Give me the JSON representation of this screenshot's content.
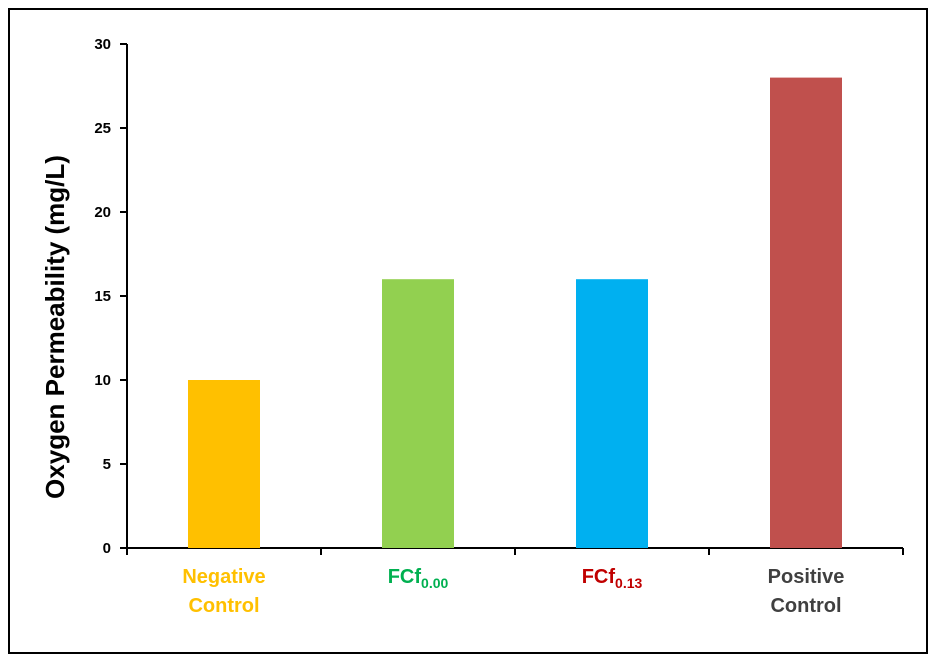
{
  "chart_data": {
    "type": "bar",
    "title": "",
    "xlabel": "",
    "ylabel": "Oxygen Permeability (mg/L)",
    "ylim": [
      0,
      30
    ],
    "yticks": [
      0,
      5,
      10,
      15,
      20,
      25,
      30
    ],
    "grid": false,
    "legend": "none",
    "categories": [
      {
        "id": "negative-control",
        "lines": [
          "Negative",
          "Control"
        ],
        "sub": "",
        "color": "#FFC000"
      },
      {
        "id": "fcf-0-00",
        "lines": [
          "FCf"
        ],
        "sub": "0.00",
        "color": "#92D050"
      },
      {
        "id": "fcf-0-13",
        "lines": [
          "FCf"
        ],
        "sub": "0.13",
        "color": "#00B0F0"
      },
      {
        "id": "positive-control",
        "lines": [
          "Positive",
          "Control"
        ],
        "sub": "",
        "color": "#C0504D"
      }
    ],
    "label_colors": [
      "#FFC000",
      "#00B050",
      "#C00000",
      "#404040"
    ],
    "values": [
      10,
      16,
      16,
      28
    ]
  }
}
